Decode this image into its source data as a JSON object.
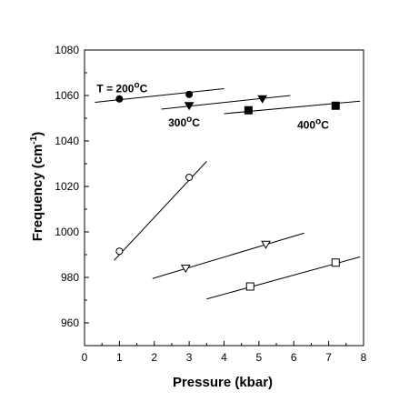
{
  "chart_data": {
    "type": "scatter",
    "xlabel": "Pressure (kbar)",
    "ylabel": "Frequency (cm",
    "ylabel_sup": "-1",
    "ylabel_tail": ")",
    "xlim": [
      0,
      8
    ],
    "ylim": [
      950,
      1080
    ],
    "xticks": [
      0,
      1,
      2,
      3,
      4,
      5,
      6,
      7,
      8
    ],
    "yticks": [
      960,
      980,
      1000,
      1020,
      1040,
      1060,
      1080
    ],
    "grid": false,
    "series": [
      {
        "marker": "filled-circle",
        "points": [
          {
            "x": 1.0,
            "y": 1058.5
          },
          {
            "x": 3.0,
            "y": 1060.5
          }
        ],
        "fit": {
          "x": [
            0.3,
            4.0
          ],
          "y": [
            1057.0,
            1063.0
          ]
        }
      },
      {
        "marker": "filled-triangle-down",
        "points": [
          {
            "x": 3.0,
            "y": 1055.5
          },
          {
            "x": 5.1,
            "y": 1058.5
          }
        ],
        "fit": {
          "x": [
            2.2,
            5.9
          ],
          "y": [
            1054.0,
            1060.0
          ]
        }
      },
      {
        "marker": "filled-square",
        "points": [
          {
            "x": 4.7,
            "y": 1053.5
          },
          {
            "x": 7.2,
            "y": 1055.5
          }
        ],
        "fit": {
          "x": [
            4.0,
            7.9
          ],
          "y": [
            1052.0,
            1057.5
          ]
        }
      },
      {
        "marker": "open-circle",
        "points": [
          {
            "x": 1.0,
            "y": 991.5
          },
          {
            "x": 3.0,
            "y": 1024.0
          }
        ],
        "fit": {
          "x": [
            0.85,
            3.5
          ],
          "y": [
            987.5,
            1031.0
          ]
        }
      },
      {
        "marker": "open-triangle-down",
        "points": [
          {
            "x": 2.9,
            "y": 984.0
          },
          {
            "x": 5.2,
            "y": 994.5
          }
        ],
        "fit": {
          "x": [
            1.95,
            6.3
          ],
          "y": [
            979.5,
            999.5
          ]
        }
      },
      {
        "marker": "open-square",
        "points": [
          {
            "x": 4.75,
            "y": 976.0
          },
          {
            "x": 7.2,
            "y": 986.5
          }
        ],
        "fit": {
          "x": [
            3.5,
            7.9
          ],
          "y": [
            970.5,
            989.0
          ]
        }
      }
    ],
    "annotations": [
      {
        "text": "T  = 200",
        "sup": "o",
        "tail": "C",
        "x": 0.35,
        "y": 1061.5
      },
      {
        "text": "300",
        "sup": "o",
        "tail": "C",
        "x": 2.4,
        "y": 1046.5
      },
      {
        "text": "400",
        "sup": "o",
        "tail": "C",
        "x": 6.1,
        "y": 1045.5
      }
    ]
  }
}
